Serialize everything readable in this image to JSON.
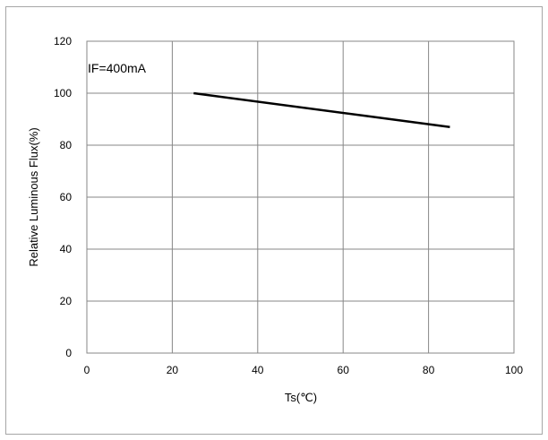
{
  "chart_data": {
    "type": "line",
    "title": "",
    "xlabel": "Ts(℃)",
    "ylabel": "Relative Luminous Flux(%)",
    "annotation": "IF=400mA",
    "xlim": [
      0,
      100
    ],
    "ylim": [
      0,
      120
    ],
    "x_ticks": [
      0,
      20,
      40,
      60,
      80,
      100
    ],
    "y_ticks": [
      0,
      20,
      40,
      60,
      80,
      100,
      120
    ],
    "grid": true,
    "legend": "none",
    "series": [
      {
        "color": "#000000",
        "x": [
          25,
          85
        ],
        "y": [
          100,
          87
        ]
      }
    ]
  }
}
